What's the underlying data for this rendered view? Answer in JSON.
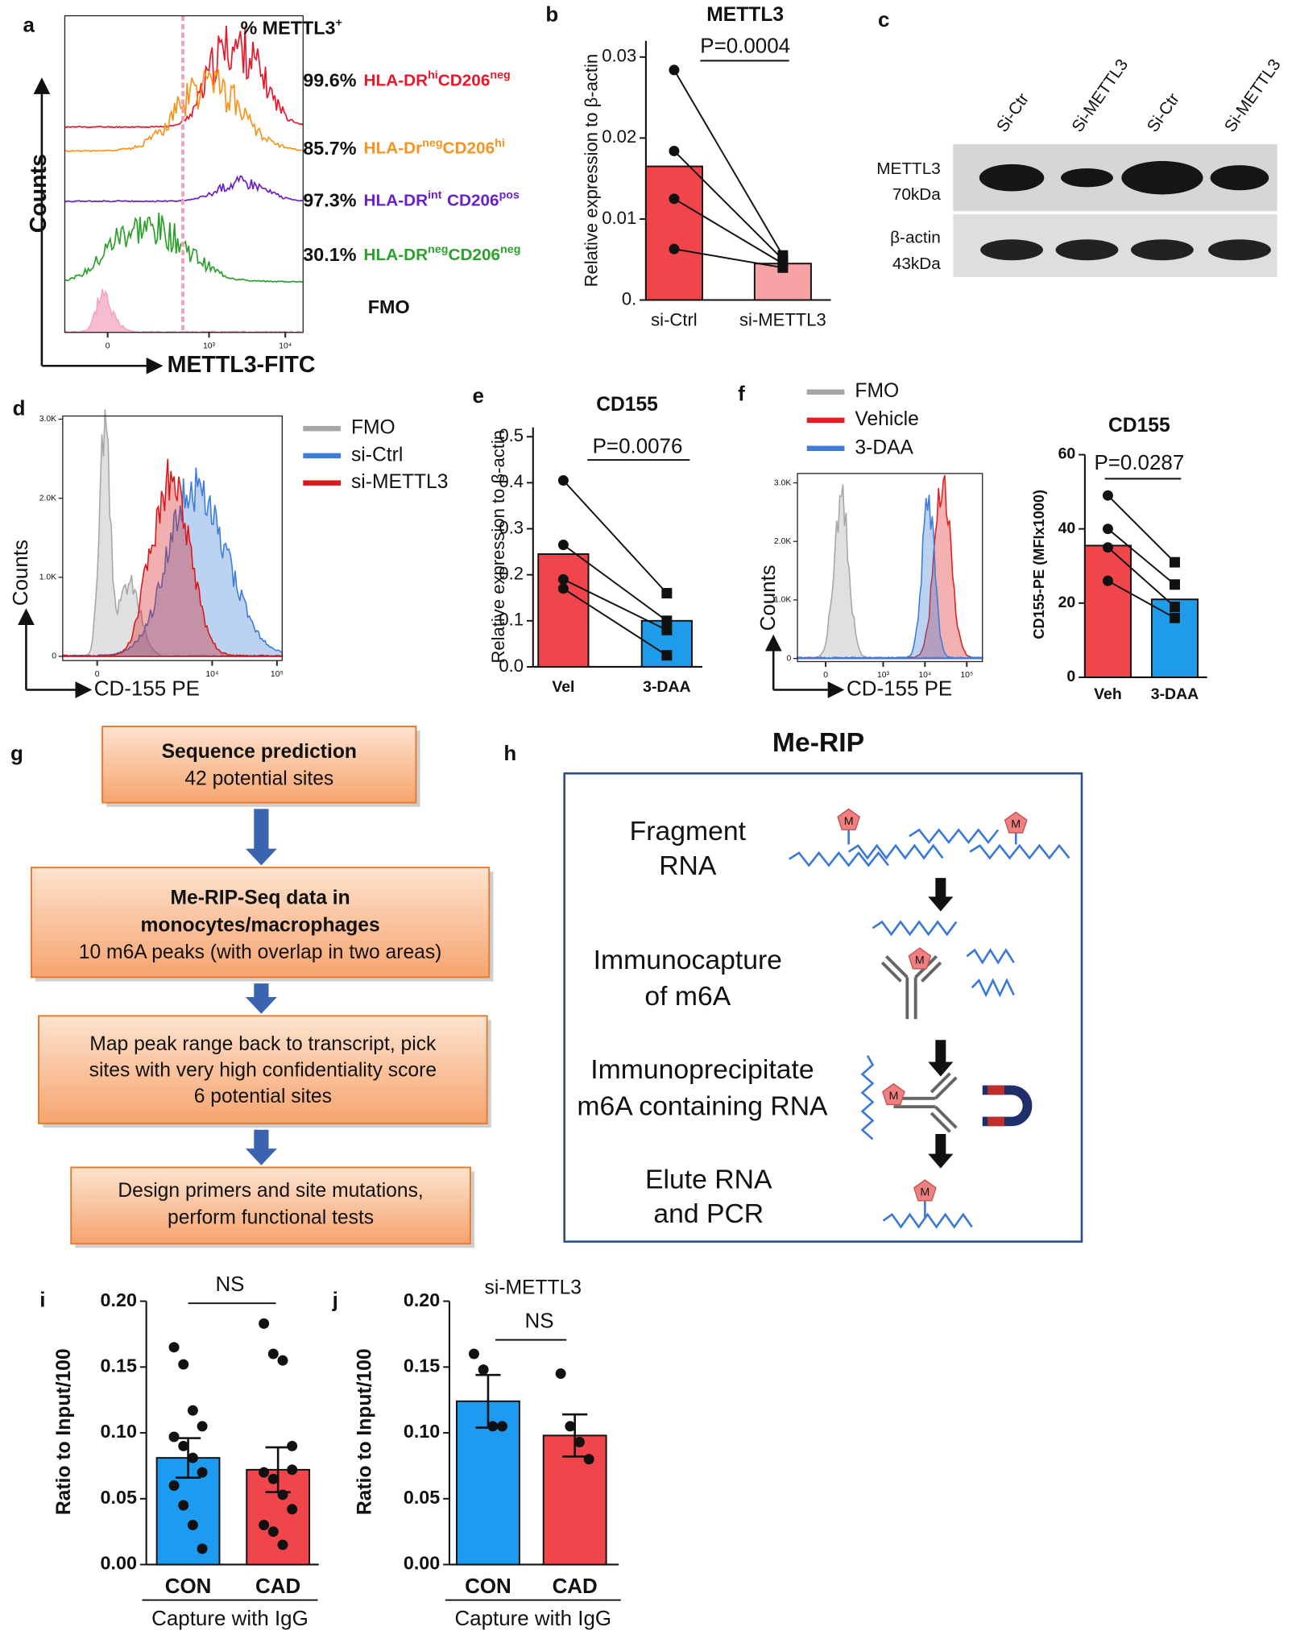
{
  "panel_labels": [
    "a",
    "b",
    "c",
    "d",
    "e",
    "f",
    "g",
    "h",
    "i",
    "j"
  ],
  "flow_a": {
    "annotation": [
      "% METTL3",
      "+"
    ],
    "rows": [
      {
        "percent": "99.6%",
        "label": [
          "HLA-DR",
          "hi",
          "CD206",
          "neg"
        ],
        "color": "#e8182a"
      },
      {
        "percent": "85.7%",
        "label": [
          "HLA-Dr",
          "neg",
          "CD206",
          "hi"
        ],
        "color": "#f7941d"
      },
      {
        "percent": "97.3%",
        "label": [
          "HLA-DR",
          "int",
          "CD206",
          "pos"
        ],
        "color": "#6a1fc9"
      },
      {
        "percent": "30.1%",
        "label": [
          "HLA-DR",
          "neg",
          "CD206",
          "neg"
        ],
        "color": "#2ca02c"
      }
    ],
    "fmo": {
      "label": "FMO",
      "color": "#f4a0b8"
    },
    "xlabel": "METTL3-FITC",
    "ylabel": "Counts",
    "xticks": [
      0,
      {
        "value": 1000,
        "label": "10³"
      },
      {
        "value": 10000,
        "label": "10⁴"
      }
    ]
  },
  "flow_d": {
    "series": [
      {
        "name": "FMO",
        "color": "#a6a6a6"
      },
      {
        "name": "si-Ctrl",
        "color": "#3b7dd8"
      },
      {
        "name": "si-METTL3",
        "color": "#d7191c"
      }
    ],
    "xlabel": "CD-155 PE",
    "ylabel": "Counts",
    "ylim": [
      0,
      3000
    ],
    "yticks": [
      0,
      {
        "value": 1000,
        "label": "1.0K"
      },
      {
        "value": 2000,
        "label": "2.0K"
      },
      {
        "value": 3000,
        "label": "3.0K"
      }
    ],
    "xticks": [
      0,
      {
        "value": 10000,
        "label": "10⁴"
      },
      {
        "value": 100000,
        "label": "10⁵"
      }
    ]
  },
  "flow_f": {
    "series": [
      {
        "name": "FMO",
        "color": "#a6a6a6"
      },
      {
        "name": "Vehicle",
        "color": "#e02020"
      },
      {
        "name": "3-DAA",
        "color": "#3b7dd8"
      }
    ],
    "xlabel": "CD-155 PE",
    "ylabel": "Counts",
    "ylim": [
      0,
      3160
    ],
    "yticks": [
      0,
      {
        "value": 1000,
        "label": "1.0K"
      },
      {
        "value": 2000,
        "label": "2.0K"
      },
      {
        "value": 3000,
        "label": "3.0K"
      }
    ],
    "xticks": [
      0,
      {
        "value": 1000,
        "label": "10³"
      },
      {
        "value": 10000,
        "label": "10⁴"
      },
      {
        "value": 100000,
        "label": "10⁵"
      }
    ]
  },
  "blot": {
    "lanes": [
      "Si-Ctr",
      "Si-METTL3",
      "Si-Ctr",
      "Si-METTL3"
    ],
    "rows": [
      [
        "METTL3",
        "70kDa"
      ],
      [
        "β-actin",
        "43kDa"
      ]
    ]
  },
  "flowchart": {
    "boxes": [
      [
        {
          "text": "Sequence prediction",
          "bold": true
        },
        {
          "text": "42 potential sites",
          "bold": false
        }
      ],
      [
        {
          "text": "Me-RIP-Seq data in",
          "bold": true
        },
        {
          "text": "monocytes/macrophages",
          "bold": true
        },
        {
          "text": "10 m6A peaks (with overlap in two areas)",
          "bold": false
        }
      ],
      [
        {
          "text": "Map peak range back to transcript, pick",
          "bold": false
        },
        {
          "text": "sites with very high confidentiality score",
          "bold": false
        },
        {
          "text": "6 potential sites",
          "bold": false
        }
      ],
      [
        {
          "text": "Design primers and site mutations,",
          "bold": false
        },
        {
          "text": "perform functional tests",
          "bold": false
        }
      ]
    ]
  },
  "merip": {
    "title": "Me-RIP",
    "steps": [
      [
        "Fragment",
        "RNA"
      ],
      [
        "Immunocapture",
        "of m6A"
      ],
      [
        "Immunoprecipitate",
        "m6A containing RNA"
      ],
      [
        "Elute RNA",
        "and PCR"
      ]
    ],
    "marker": "M"
  },
  "chart_data": [
    {
      "type": "bar",
      "title": "METTL3",
      "annotation": "P=0.0004",
      "ylabel": "Relative expression to β-actin",
      "categories": [
        "si-Ctrl",
        "si-METTL3"
      ],
      "values": [
        0.0165,
        0.0045
      ],
      "colors": [
        "#f0454a",
        "#f7a3a6"
      ],
      "points": [
        [
          0.0284,
          0.0184,
          0.0125,
          0.0063
        ],
        [
          0.0055,
          0.005,
          0.0045,
          0.004
        ]
      ],
      "markers": [
        "circle",
        "square"
      ],
      "paired": true,
      "ylim": [
        0,
        0.032
      ],
      "yticks": [
        {
          "value": 0,
          "label": "0."
        },
        0.01,
        0.02,
        0.03
      ]
    },
    {
      "type": "bar",
      "title": "CD155",
      "annotation": "P=0.0076",
      "ylabel": "Relative expression to β-actin",
      "categories": [
        "Vel",
        "3-DAA"
      ],
      "values": [
        0.245,
        0.1
      ],
      "colors": [
        "#f0454a",
        "#1e9be9"
      ],
      "points": [
        [
          0.405,
          0.265,
          0.19,
          0.17
        ],
        [
          0.16,
          0.1,
          0.08,
          0.025
        ]
      ],
      "markers": [
        "circle",
        "square"
      ],
      "paired": true,
      "ylim": [
        0,
        0.52
      ],
      "yticks": [
        {
          "value": 0,
          "label": "0.0"
        },
        0.1,
        0.2,
        0.3,
        0.4,
        0.5
      ]
    },
    {
      "type": "bar",
      "title": "CD155",
      "annotation": "P=0.0287",
      "ylabel": "CD155-PE (MFIx1000)",
      "categories": [
        "Veh",
        "3-DAA"
      ],
      "values": [
        35.5,
        21
      ],
      "colors": [
        "#f0454a",
        "#1e9be9"
      ],
      "points": [
        [
          49,
          40,
          35,
          26
        ],
        [
          31,
          25,
          19,
          16
        ]
      ],
      "markers": [
        "circle",
        "square"
      ],
      "paired": true,
      "ylim": [
        0,
        60
      ],
      "yticks": [
        0,
        20,
        40,
        60
      ]
    },
    {
      "type": "bar",
      "annotation": "NS",
      "ylabel": "Ratio to Input/100",
      "xlabel": "Capture with IgG",
      "categories": [
        "CON",
        "CAD"
      ],
      "values": [
        0.081,
        0.072
      ],
      "errors": [
        0.015,
        0.017
      ],
      "colors": [
        "#1d9bf0",
        "#f0454a"
      ],
      "points": [
        [
          0.165,
          0.152,
          0.117,
          0.105,
          0.097,
          0.09,
          0.081,
          0.07,
          0.06,
          0.045,
          0.03,
          0.012
        ],
        [
          0.183,
          0.16,
          0.155,
          0.09,
          0.07,
          0.065,
          0.053,
          0.042,
          0.03,
          0.025,
          0.015,
          0.072
        ]
      ],
      "markers": [
        "circle",
        "circle"
      ],
      "paired": false,
      "ylim": [
        0,
        0.2
      ],
      "yticks": [
        {
          "value": 0,
          "label": "0.00"
        },
        0.05,
        {
          "value": 0.1,
          "label": "0.10"
        },
        0.15,
        {
          "value": 0.2,
          "label": "0.20"
        }
      ]
    },
    {
      "type": "bar",
      "title": "si-METTL3",
      "annotation": "NS",
      "ylabel": "Ratio to Input/100",
      "xlabel": "Capture with IgG",
      "categories": [
        "CON",
        "CAD"
      ],
      "values": [
        0.124,
        0.098
      ],
      "errors": [
        0.02,
        0.016
      ],
      "colors": [
        "#1d9bf0",
        "#f0454a"
      ],
      "points": [
        [
          0.16,
          0.148,
          0.105,
          0.105
        ],
        [
          0.145,
          0.105,
          0.093,
          0.08
        ]
      ],
      "markers": [
        "circle",
        "circle"
      ],
      "paired": false,
      "ylim": [
        0,
        0.2
      ],
      "yticks": [
        {
          "value": 0,
          "label": "0.00"
        },
        0.05,
        {
          "value": 0.1,
          "label": "0.10"
        },
        0.15,
        {
          "value": 0.2,
          "label": "0.20"
        }
      ]
    }
  ]
}
